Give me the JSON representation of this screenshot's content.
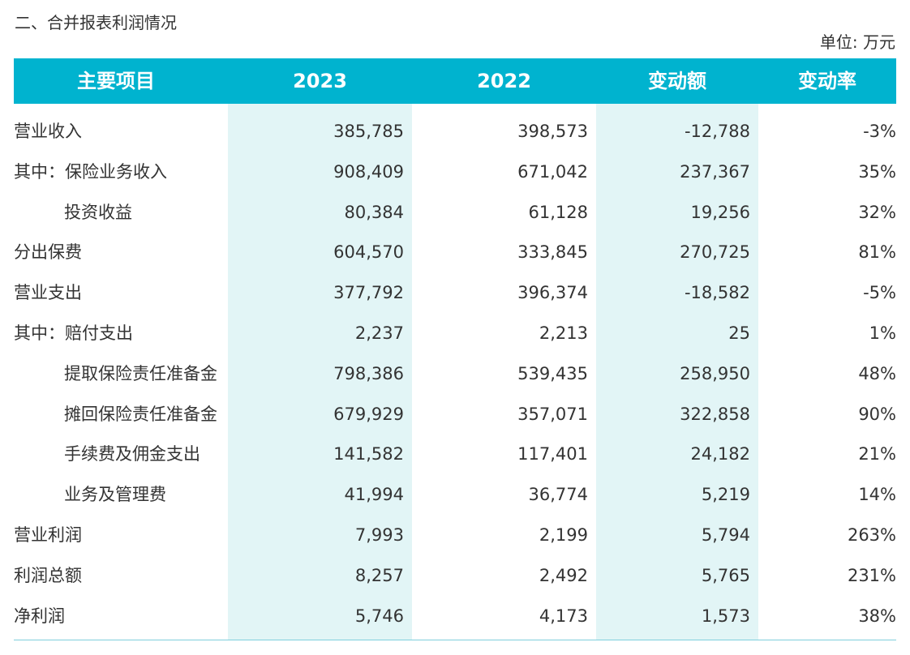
{
  "section_title": "二、合并报表利润情况",
  "unit": "单位: 万元",
  "table": {
    "headers": [
      "主要项目",
      "2023",
      "2022",
      "变动额",
      "变动率"
    ],
    "rows": [
      {
        "label": "营业收入",
        "indent": false,
        "v2023": "385,785",
        "v2022": "398,573",
        "change": "-12,788",
        "rate": "-3%"
      },
      {
        "label": "其中：保险业务收入",
        "indent": false,
        "v2023": "908,409",
        "v2022": "671,042",
        "change": "237,367",
        "rate": "35%"
      },
      {
        "label": "投资收益",
        "indent": true,
        "v2023": "80,384",
        "v2022": "61,128",
        "change": "19,256",
        "rate": "32%"
      },
      {
        "label": "分出保费",
        "indent": false,
        "v2023": "604,570",
        "v2022": "333,845",
        "change": "270,725",
        "rate": "81%"
      },
      {
        "label": "营业支出",
        "indent": false,
        "v2023": "377,792",
        "v2022": "396,374",
        "change": "-18,582",
        "rate": "-5%"
      },
      {
        "label": "其中：赔付支出",
        "indent": false,
        "v2023": "2,237",
        "v2022": "2,213",
        "change": "25",
        "rate": "1%"
      },
      {
        "label": "提取保险责任准备金",
        "indent": true,
        "v2023": "798,386",
        "v2022": "539,435",
        "change": "258,950",
        "rate": "48%"
      },
      {
        "label": "摊回保险责任准备金",
        "indent": true,
        "v2023": "679,929",
        "v2022": "357,071",
        "change": "322,858",
        "rate": "90%"
      },
      {
        "label": "手续费及佣金支出",
        "indent": true,
        "v2023": "141,582",
        "v2022": "117,401",
        "change": "24,182",
        "rate": "21%"
      },
      {
        "label": "业务及管理费",
        "indent": true,
        "v2023": "41,994",
        "v2022": "36,774",
        "change": "5,219",
        "rate": "14%"
      },
      {
        "label": "营业利润",
        "indent": false,
        "v2023": "7,993",
        "v2022": "2,199",
        "change": "5,794",
        "rate": "263%"
      },
      {
        "label": "利润总额",
        "indent": false,
        "v2023": "8,257",
        "v2022": "2,492",
        "change": "5,765",
        "rate": "231%"
      },
      {
        "label": "净利润",
        "indent": false,
        "v2023": "5,746",
        "v2022": "4,173",
        "change": "1,573",
        "rate": "38%"
      }
    ]
  },
  "colors": {
    "header_bg": "#00b3cf",
    "band_bg": "#e2f5f6",
    "text": "#333333"
  }
}
